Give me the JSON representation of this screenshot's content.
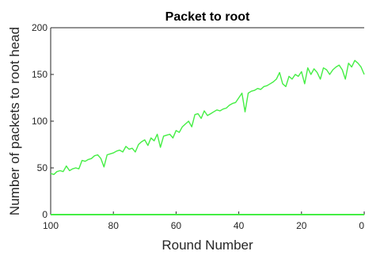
{
  "chart_data": {
    "type": "line",
    "title": "Packet to root",
    "xlabel": "Round Number",
    "ylabel": "Number of packets to root head",
    "xlim": [
      100,
      0
    ],
    "x_reversed": true,
    "ylim": [
      0,
      200
    ],
    "x_ticks": [
      100,
      80,
      60,
      40,
      20,
      0
    ],
    "x_tick_labels": [
      "100",
      "80",
      "60",
      "40",
      "20",
      "0"
    ],
    "y_ticks": [
      0,
      50,
      100,
      150,
      200
    ],
    "y_tick_labels": [
      "0",
      "50",
      "100",
      "150",
      "200"
    ],
    "grid": false,
    "legend": "none",
    "line_color": "#44ee44",
    "series": [
      {
        "x": [
          100,
          99,
          98,
          97,
          96,
          95,
          94,
          93,
          92,
          91,
          90,
          89,
          88,
          87,
          86,
          85,
          84,
          83,
          82,
          81,
          80,
          79,
          78,
          77,
          76,
          75,
          74,
          73,
          72,
          71,
          70,
          69,
          68,
          67,
          66,
          65,
          64,
          63,
          62,
          61,
          60,
          59,
          58,
          57,
          56,
          55,
          54,
          53,
          52,
          51,
          50,
          49,
          48,
          47,
          46,
          45,
          44,
          43,
          42,
          41,
          40,
          39,
          38,
          37,
          36,
          35,
          34,
          33,
          32,
          31,
          30,
          29,
          28,
          27,
          26,
          25,
          24,
          23,
          22,
          21,
          20,
          19,
          18,
          17,
          16,
          15,
          14,
          13,
          12,
          11,
          10,
          9,
          8,
          7,
          6,
          5,
          4,
          3,
          2,
          1,
          0
        ],
        "y": [
          44,
          43,
          46,
          47,
          46,
          52,
          47,
          49,
          50,
          49,
          58,
          57,
          59,
          60,
          63,
          64,
          60,
          51,
          64,
          65,
          66,
          68,
          69,
          67,
          73,
          70,
          71,
          67,
          75,
          78,
          80,
          74,
          82,
          79,
          86,
          72,
          84,
          85,
          86,
          82,
          90,
          88,
          94,
          97,
          100,
          94,
          107,
          108,
          103,
          111,
          106,
          108,
          110,
          112,
          111,
          113,
          114,
          117,
          119,
          120,
          125,
          130,
          110,
          130,
          132,
          133,
          135,
          134,
          137,
          138,
          140,
          142,
          145,
          152,
          140,
          137,
          148,
          145,
          150,
          148,
          153,
          140,
          157,
          150,
          156,
          152,
          145,
          157,
          155,
          150,
          155,
          158,
          160,
          155,
          145,
          162,
          158,
          165,
          162,
          158,
          150
        ]
      },
      {
        "x": [
          100,
          0
        ],
        "y": [
          0,
          0
        ]
      }
    ]
  }
}
